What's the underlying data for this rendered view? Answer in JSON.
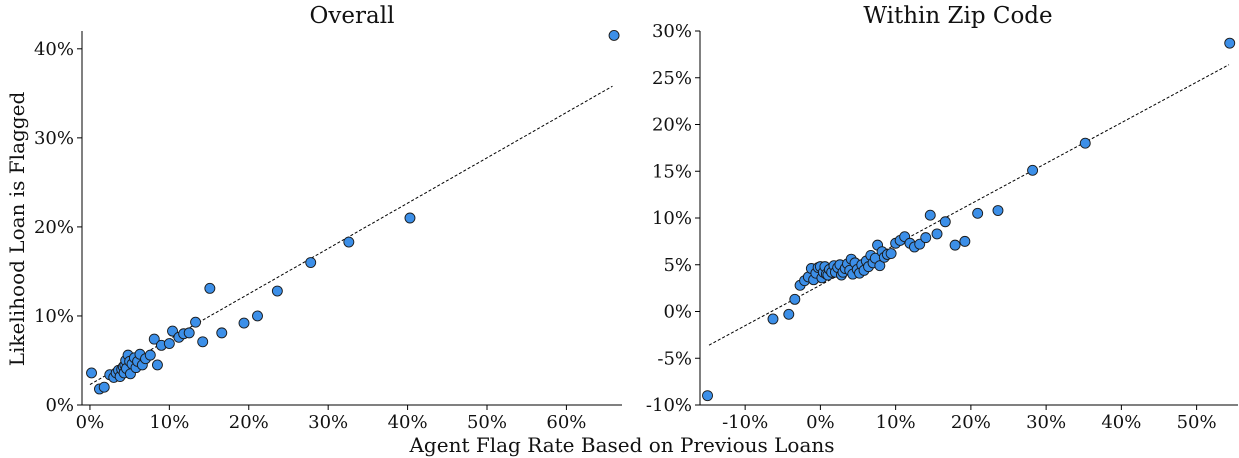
{
  "figure": {
    "xlabel": "Agent Flag Rate Based on Previous Loans",
    "ylabel": "Likelihood Loan is Flagged"
  },
  "chart_data": [
    {
      "type": "scatter",
      "title": "Overall",
      "xlim": [
        -1,
        67
      ],
      "ylim": [
        0,
        42
      ],
      "xticks": [
        0,
        10,
        20,
        30,
        40,
        50,
        60
      ],
      "xtick_labels": [
        "0%",
        "10%",
        "20%",
        "30%",
        "40%",
        "50%",
        "60%"
      ],
      "yticks": [
        0,
        10,
        20,
        30,
        40
      ],
      "ytick_labels": [
        "0%",
        "10%",
        "20%",
        "30%",
        "40%"
      ],
      "grid": false,
      "marker_color": "#3c8fe8",
      "fit_line": {
        "style": "dashed",
        "from": [
          0,
          2.3
        ],
        "to": [
          65.8,
          35.8
        ]
      },
      "points": [
        [
          0.2,
          3.6
        ],
        [
          1.2,
          1.8
        ],
        [
          1.8,
          2.0
        ],
        [
          2.5,
          3.4
        ],
        [
          3.0,
          3.1
        ],
        [
          3.3,
          3.6
        ],
        [
          3.6,
          3.9
        ],
        [
          3.8,
          3.2
        ],
        [
          4.0,
          4.0
        ],
        [
          4.2,
          4.3
        ],
        [
          4.3,
          3.6
        ],
        [
          4.4,
          4.5
        ],
        [
          4.5,
          5.0
        ],
        [
          4.6,
          4.1
        ],
        [
          4.8,
          5.6
        ],
        [
          5.0,
          4.9
        ],
        [
          5.1,
          3.5
        ],
        [
          5.3,
          4.6
        ],
        [
          5.6,
          5.3
        ],
        [
          5.8,
          4.2
        ],
        [
          6.0,
          4.9
        ],
        [
          6.3,
          5.7
        ],
        [
          6.6,
          4.5
        ],
        [
          7.0,
          5.2
        ],
        [
          7.6,
          5.6
        ],
        [
          8.1,
          7.4
        ],
        [
          8.5,
          4.5
        ],
        [
          9.0,
          6.7
        ],
        [
          10.0,
          6.9
        ],
        [
          10.4,
          8.3
        ],
        [
          11.2,
          7.6
        ],
        [
          11.8,
          8.0
        ],
        [
          12.5,
          8.1
        ],
        [
          13.3,
          9.3
        ],
        [
          14.2,
          7.1
        ],
        [
          15.1,
          13.1
        ],
        [
          16.6,
          8.1
        ],
        [
          19.4,
          9.2
        ],
        [
          21.1,
          10.0
        ],
        [
          23.6,
          12.8
        ],
        [
          27.8,
          16.0
        ],
        [
          32.6,
          18.3
        ],
        [
          40.3,
          21.0
        ],
        [
          66.0,
          41.5
        ]
      ]
    },
    {
      "type": "scatter",
      "title": "Within Zip Code",
      "xlim": [
        -16,
        55.5
      ],
      "ylim": [
        -10,
        30
      ],
      "xticks": [
        -10,
        0,
        10,
        20,
        30,
        40,
        50
      ],
      "xtick_labels": [
        "-10%",
        "0%",
        "10%",
        "20%",
        "30%",
        "40%",
        "50%"
      ],
      "yticks": [
        -10,
        -5,
        0,
        5,
        10,
        15,
        20,
        25,
        30
      ],
      "ytick_labels": [
        "-10%",
        "-5%",
        "0%",
        "5%",
        "10%",
        "15%",
        "20%",
        "25%",
        "30%"
      ],
      "grid": false,
      "marker_color": "#3c8fe8",
      "fit_line": {
        "style": "dashed",
        "from": [
          -14.8,
          -3.6
        ],
        "to": [
          54.3,
          26.4
        ]
      },
      "points": [
        [
          -15.0,
          -9.0
        ],
        [
          -6.3,
          -0.8
        ],
        [
          -4.2,
          -0.3
        ],
        [
          -3.4,
          1.3
        ],
        [
          -2.7,
          2.8
        ],
        [
          -2.1,
          3.3
        ],
        [
          -1.6,
          3.7
        ],
        [
          -1.2,
          4.6
        ],
        [
          -0.9,
          3.4
        ],
        [
          -0.6,
          4.1
        ],
        [
          -0.3,
          4.7
        ],
        [
          0.0,
          4.8
        ],
        [
          0.2,
          3.6
        ],
        [
          0.4,
          4.2
        ],
        [
          0.6,
          4.8
        ],
        [
          0.8,
          4.0
        ],
        [
          1.0,
          3.9
        ],
        [
          1.2,
          4.5
        ],
        [
          1.5,
          4.2
        ],
        [
          1.8,
          4.9
        ],
        [
          2.0,
          4.2
        ],
        [
          2.3,
          4.7
        ],
        [
          2.6,
          5.0
        ],
        [
          2.8,
          3.9
        ],
        [
          3.0,
          4.2
        ],
        [
          3.3,
          4.6
        ],
        [
          3.6,
          5.1
        ],
        [
          3.9,
          4.4
        ],
        [
          4.1,
          5.6
        ],
        [
          4.3,
          4.0
        ],
        [
          4.6,
          5.2
        ],
        [
          4.9,
          4.5
        ],
        [
          5.2,
          4.1
        ],
        [
          5.5,
          5.0
        ],
        [
          5.8,
          4.4
        ],
        [
          6.1,
          5.4
        ],
        [
          6.4,
          4.8
        ],
        [
          6.7,
          6.0
        ],
        [
          7.0,
          5.2
        ],
        [
          7.3,
          5.7
        ],
        [
          7.6,
          7.1
        ],
        [
          7.9,
          4.9
        ],
        [
          8.2,
          6.4
        ],
        [
          8.5,
          5.8
        ],
        [
          8.9,
          6.1
        ],
        [
          9.4,
          6.2
        ],
        [
          10.0,
          7.3
        ],
        [
          10.6,
          7.6
        ],
        [
          11.2,
          8.0
        ],
        [
          11.9,
          7.3
        ],
        [
          12.5,
          6.9
        ],
        [
          13.2,
          7.2
        ],
        [
          14.0,
          7.9
        ],
        [
          14.6,
          10.3
        ],
        [
          15.5,
          8.3
        ],
        [
          16.6,
          9.6
        ],
        [
          17.9,
          7.1
        ],
        [
          19.2,
          7.5
        ],
        [
          20.9,
          10.5
        ],
        [
          23.6,
          10.8
        ],
        [
          28.2,
          15.1
        ],
        [
          35.2,
          18.0
        ],
        [
          54.4,
          28.7
        ]
      ]
    }
  ]
}
